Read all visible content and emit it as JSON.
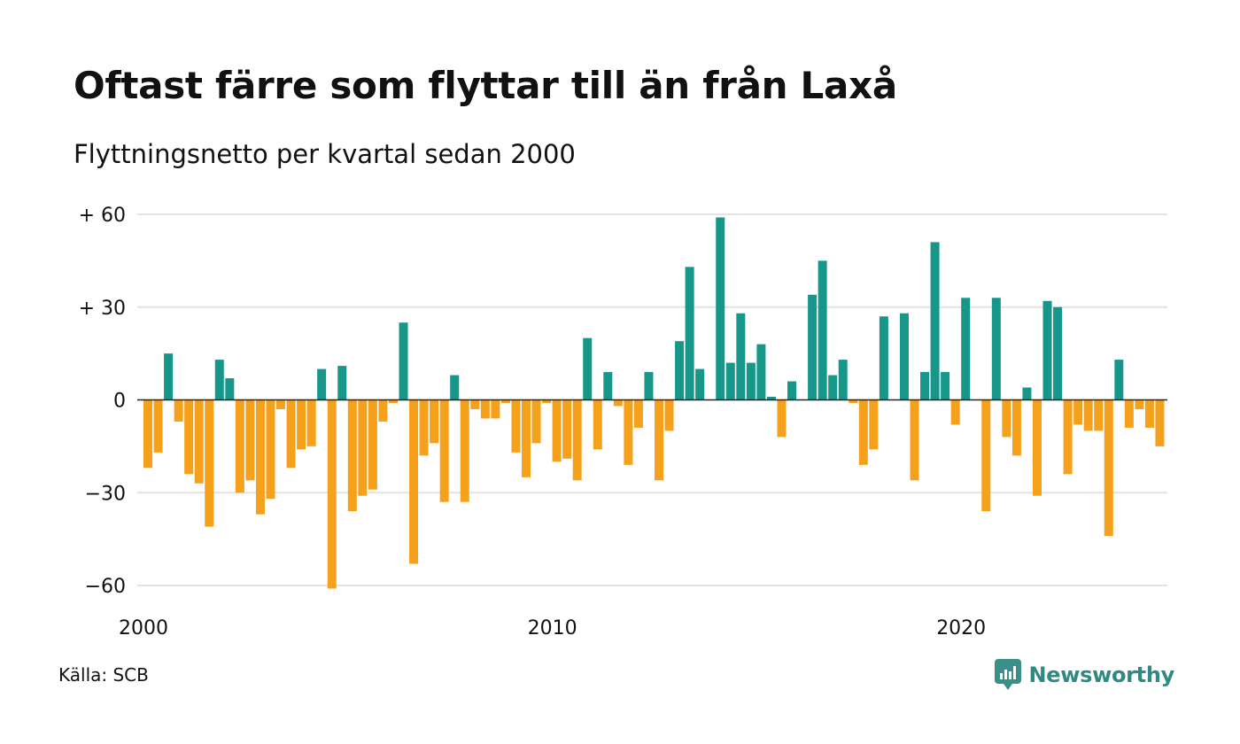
{
  "title": "Oftast färre som flyttar till än från Laxå",
  "subtitle": "Flyttningsnetto per kvartal sedan 2000",
  "source": "Källa: SCB",
  "brand": {
    "name": "Newsworthy",
    "icon": "newsworthy-logo-icon",
    "color": "#3a8f89"
  },
  "colors": {
    "positive": "#17968a",
    "negative": "#f5a11c",
    "grid": "#e3e3e3",
    "zero_line": "#222222"
  },
  "chart_data": {
    "type": "bar",
    "title": "Oftast färre som flyttar till än från Laxå",
    "subtitle": "Flyttningsnetto per kvartal sedan 2000",
    "x_start": "2000 Q1",
    "x_ticks": [
      "2000",
      "2010",
      "2020"
    ],
    "y_ticks": [
      {
        "value": 60,
        "label": "+ 60"
      },
      {
        "value": 30,
        "label": "+ 30"
      },
      {
        "value": 0,
        "label": "0"
      },
      {
        "value": -30,
        "label": "−30"
      },
      {
        "value": -60,
        "label": "−60"
      }
    ],
    "ylim": [
      -60,
      60
    ],
    "grid": true,
    "series": [
      {
        "values": [
          -22,
          -17,
          15,
          -7,
          -24,
          -27,
          -41,
          13,
          7,
          -30,
          -26,
          -37,
          -32,
          -3,
          -22,
          -16,
          -15,
          10,
          -61,
          11,
          -36,
          -31,
          -29,
          -7,
          -1,
          25,
          -53,
          -18,
          -14,
          -33,
          8,
          -33,
          -3,
          -6,
          -6,
          -1,
          -17,
          -25,
          -14,
          -1,
          -20,
          -19,
          -26,
          20,
          -16,
          9,
          -2,
          -21,
          -9,
          9,
          -26,
          -10,
          19,
          43,
          10,
          0,
          59,
          12,
          28,
          12,
          18,
          1,
          -12,
          6,
          0,
          34,
          45,
          8,
          13,
          -1,
          -21,
          -16,
          27,
          0,
          28,
          -26,
          9,
          51,
          9,
          -8,
          33,
          0,
          -36,
          33,
          -12,
          -18,
          4,
          -31,
          32,
          30,
          -24,
          -8,
          -10,
          -10,
          -44,
          13,
          -9,
          -3,
          -9,
          -15
        ]
      }
    ]
  }
}
